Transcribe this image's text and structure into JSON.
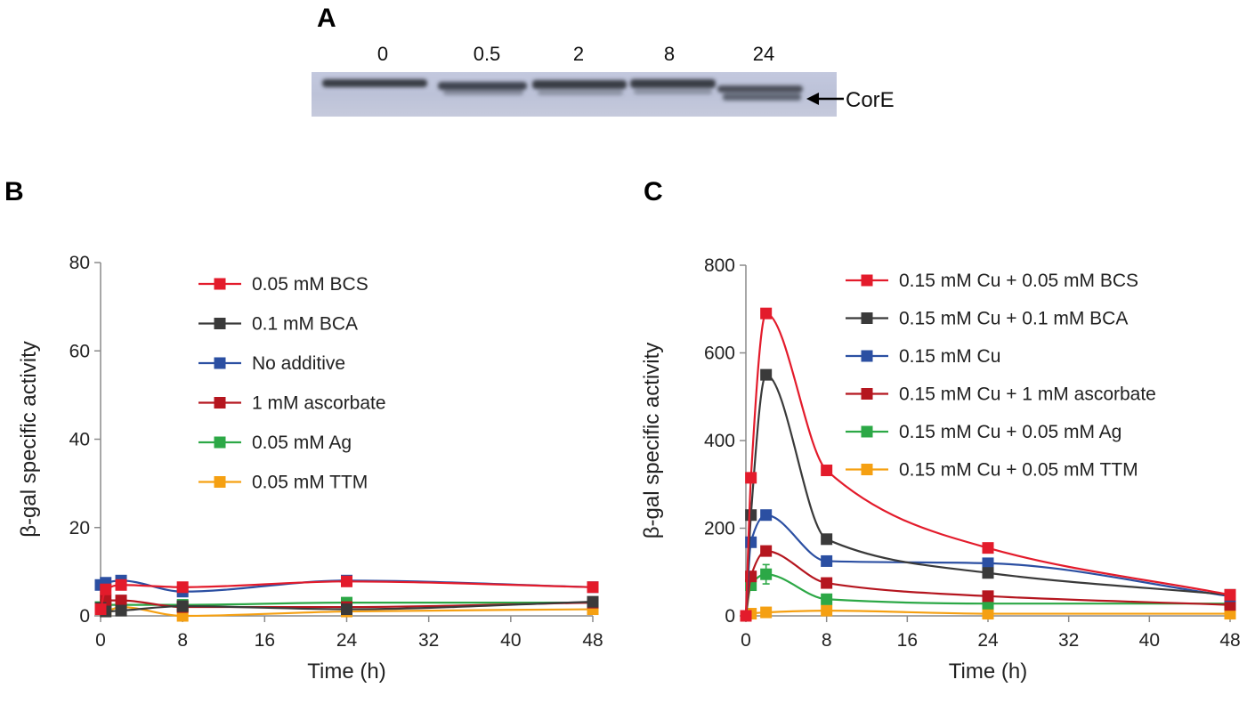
{
  "blot": {
    "letter": "A",
    "lane_labels": [
      "0",
      "0.5",
      "2",
      "8",
      "24"
    ],
    "target_label": "CorE"
  },
  "chart_data": [
    {
      "type": "line",
      "letter": "B",
      "xlabel": "Time (h)",
      "ylabel": "β-gal specific activity",
      "xlim": [
        0,
        48
      ],
      "ylim": [
        0,
        80
      ],
      "xticks": [
        0,
        8,
        16,
        24,
        32,
        40,
        48
      ],
      "yticks": [
        0,
        20,
        40,
        60,
        80
      ],
      "grid": false,
      "legend_position": "top-center",
      "x": [
        0,
        0.5,
        2,
        8,
        24,
        48
      ],
      "series": [
        {
          "name": "0.05 mM BCS",
          "color": "#e31b2b",
          "values": [
            1.5,
            6,
            7,
            6.5,
            7.8,
            6.5
          ],
          "errors": [
            0,
            0.5,
            0.5,
            0.4,
            0.5,
            0.4
          ]
        },
        {
          "name": "0.1 mM BCA",
          "color": "#3a3a3a",
          "values": [
            1.8,
            1,
            1.2,
            2.2,
            1.5,
            3.2
          ],
          "errors": [
            0,
            0.2,
            0.2,
            0.3,
            0.2,
            0.3
          ]
        },
        {
          "name": "No additive",
          "color": "#2b4fa2",
          "values": [
            7,
            7.5,
            8,
            5.5,
            8,
            6.5
          ],
          "errors": [
            0,
            0.5,
            0.6,
            0.4,
            0.5,
            0.4
          ]
        },
        {
          "name": "1 mM ascorbate",
          "color": "#b5161f",
          "values": [
            1.5,
            3.5,
            3.5,
            2,
            2,
            3
          ],
          "errors": [
            0,
            0.3,
            0.3,
            0.2,
            0.2,
            0.2
          ]
        },
        {
          "name": "0.05 mM Ag",
          "color": "#2ca846",
          "values": [
            2,
            2.5,
            2.5,
            2.5,
            3,
            3
          ],
          "errors": [
            0,
            0.2,
            0.2,
            0.2,
            0.2,
            0.2
          ]
        },
        {
          "name": "0.05 mM TTM",
          "color": "#f5a012",
          "values": [
            1.5,
            1.2,
            2,
            0,
            1,
            1.5
          ],
          "errors": [
            0,
            0.1,
            0.1,
            0.1,
            0.1,
            0.1
          ]
        }
      ]
    },
    {
      "type": "line",
      "letter": "C",
      "xlabel": "Time (h)",
      "ylabel": "β-gal specific activity",
      "xlim": [
        0,
        48
      ],
      "ylim": [
        0,
        800
      ],
      "xticks": [
        0,
        8,
        16,
        24,
        32,
        40,
        48
      ],
      "yticks": [
        0,
        200,
        400,
        600,
        800
      ],
      "grid": false,
      "legend_position": "top-right",
      "x": [
        0,
        0.5,
        2,
        8,
        24,
        48
      ],
      "series": [
        {
          "name": "0.15 mM Cu + 0.05 mM BCS",
          "color": "#e31b2b",
          "values": [
            0,
            315,
            690,
            332,
            155,
            48
          ],
          "errors": [
            0,
            8,
            8,
            6,
            5,
            4
          ]
        },
        {
          "name": "0.15 mM Cu + 0.1 mM BCA",
          "color": "#3a3a3a",
          "values": [
            0,
            230,
            550,
            175,
            98,
            48
          ],
          "errors": [
            0,
            6,
            8,
            6,
            5,
            4
          ]
        },
        {
          "name": "0.15 mM Cu",
          "color": "#2b4fa2",
          "values": [
            0,
            168,
            230,
            125,
            120,
            45
          ],
          "errors": [
            0,
            6,
            6,
            5,
            5,
            4
          ]
        },
        {
          "name": "0.15 mM Cu + 1 mM ascorbate",
          "color": "#b5161f",
          "values": [
            0,
            90,
            148,
            75,
            45,
            25
          ],
          "errors": [
            0,
            5,
            6,
            4,
            4,
            3
          ]
        },
        {
          "name": "0.15 mM Cu + 0.05 mM Ag",
          "color": "#2ca846",
          "values": [
            0,
            70,
            95,
            38,
            28,
            28
          ],
          "errors": [
            0,
            10,
            22,
            4,
            3,
            3
          ]
        },
        {
          "name": "0.15 mM Cu + 0.05 mM TTM",
          "color": "#f5a012",
          "values": [
            0,
            5,
            8,
            12,
            5,
            5
          ],
          "errors": [
            0,
            2,
            2,
            2,
            2,
            2
          ]
        }
      ]
    }
  ]
}
